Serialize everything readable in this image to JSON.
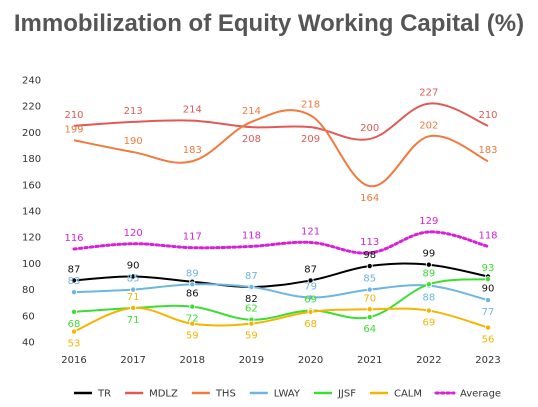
{
  "chart_data": {
    "type": "line",
    "title": "Immobilization of Equity Working Capital (%)",
    "x": [
      "2016",
      "2017",
      "2018",
      "2019",
      "2020",
      "2021",
      "2022",
      "2023"
    ],
    "yticks": [
      40,
      60,
      80,
      100,
      120,
      140,
      160,
      180,
      200,
      220,
      240
    ],
    "ylim": [
      30,
      245
    ],
    "grid": false,
    "legend_position": "bottom",
    "series": [
      {
        "name": "TR",
        "color": "#000000",
        "dashed": false,
        "markers": true,
        "values": [
          87,
          90,
          86,
          82,
          87,
          98,
          99,
          90
        ],
        "labelpos": [
          "above",
          "above",
          "below",
          "below",
          "above",
          "above",
          "above",
          "below"
        ]
      },
      {
        "name": "MDLZ",
        "color": "#e05a55",
        "dashed": false,
        "markers": false,
        "values": [
          205,
          208,
          209,
          204,
          204,
          195,
          222,
          205
        ],
        "labels": [
          210,
          213,
          214,
          208,
          209,
          200,
          227,
          210
        ],
        "labelpos": [
          "above",
          "above",
          "above",
          "below",
          "below",
          "above",
          "above",
          "above"
        ]
      },
      {
        "name": "THS",
        "color": "#f07a3e",
        "dashed": false,
        "markers": false,
        "values": [
          194,
          185,
          178,
          208,
          213,
          159,
          197,
          178
        ],
        "labels": [
          199,
          190,
          183,
          214,
          218,
          164,
          202,
          183
        ],
        "labelpos": [
          "above",
          "above",
          "above",
          "above",
          "above",
          "below",
          "above",
          "above"
        ]
      },
      {
        "name": "LWAY",
        "color": "#6cb6df",
        "dashed": false,
        "markers": true,
        "values": [
          78,
          80,
          84,
          82,
          74,
          80,
          83,
          72
        ],
        "labels": [
          83,
          85,
          89,
          87,
          79,
          85,
          88,
          77
        ],
        "labelpos": [
          "above",
          "above",
          "above",
          "above",
          "above",
          "above",
          "below",
          "below"
        ]
      },
      {
        "name": "JJSF",
        "color": "#3bde33",
        "dashed": false,
        "markers": true,
        "values": [
          63,
          66,
          67,
          57,
          64,
          59,
          84,
          88
        ],
        "labels": [
          68,
          71,
          72,
          62,
          69,
          64,
          89,
          93
        ],
        "labelpos": [
          "below",
          "below",
          "below",
          "above",
          "above",
          "below",
          "above",
          "above"
        ]
      },
      {
        "name": "CALM",
        "color": "#f5b400",
        "dashed": false,
        "markers": true,
        "values": [
          48,
          66,
          54,
          54,
          63,
          65,
          64,
          51
        ],
        "labels": [
          53,
          71,
          59,
          59,
          68,
          70,
          69,
          56
        ],
        "labelpos": [
          "below",
          "above",
          "below",
          "below",
          "below",
          "above",
          "below",
          "below"
        ]
      },
      {
        "name": "Average",
        "color": "#d622d6",
        "dashed": true,
        "markers": false,
        "values": [
          111,
          115,
          112,
          113,
          116,
          108,
          124,
          113
        ],
        "labels": [
          116,
          120,
          117,
          118,
          121,
          113,
          129,
          118
        ],
        "labelpos": [
          "above",
          "above",
          "above",
          "above",
          "above",
          "above",
          "above",
          "above"
        ]
      }
    ]
  }
}
